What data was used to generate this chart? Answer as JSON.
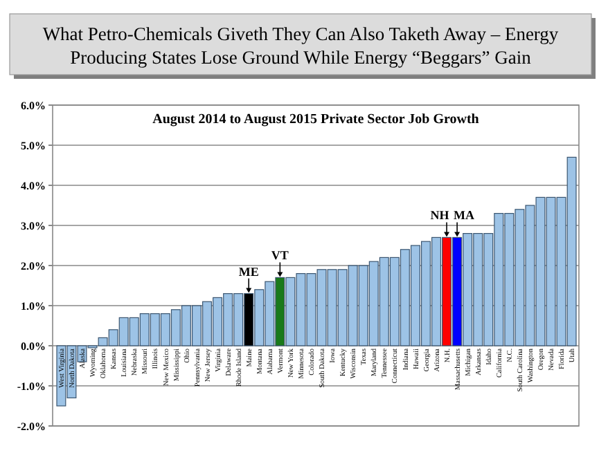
{
  "chart_data": {
    "type": "bar",
    "title": "What Petro-Chemicals Giveth They Can Also Taketh Away – Energy Producing States Lose Ground While Energy “Beggars” Gain",
    "subtitle": "August 2014 to August 2015 Private Sector Job Growth",
    "categories": [
      "West Virginia",
      "North Dakota",
      "Alaska",
      "Wyoming",
      "Oklahoma",
      "Kansas",
      "Louisiana",
      "Nebraska",
      "Missouri",
      "Illinois",
      "New Mexico",
      "Mississippi",
      "Ohio",
      "Pennsylvania",
      "New Jersey",
      "Virginia",
      "Delaware",
      "Rhode Island",
      "Maine",
      "Montana",
      "Alabama",
      "Vermont",
      "New York",
      "Minnesota",
      "Colorado",
      "South Dakota",
      "Iowa",
      "Kentucky",
      "Wisconsin",
      "Texas",
      "Maryland",
      "Tennessee",
      "Connecticut",
      "Indiana",
      "Hawaii",
      "Georgia",
      "Arizona",
      "N.H.",
      "Massachusetts",
      "Michigan",
      "Arkansas",
      "Idaho",
      "California",
      "N.C.",
      "South Carolina",
      "Washington",
      "Oregon",
      "Nevada",
      "Florida",
      "Utah"
    ],
    "values": [
      -1.5,
      -1.3,
      -0.4,
      -0.05,
      0.2,
      0.4,
      0.7,
      0.7,
      0.8,
      0.8,
      0.8,
      0.9,
      1.0,
      1.0,
      1.1,
      1.2,
      1.3,
      1.3,
      1.3,
      1.4,
      1.6,
      1.7,
      1.7,
      1.8,
      1.8,
      1.9,
      1.9,
      1.9,
      2.0,
      2.0,
      2.1,
      2.2,
      2.2,
      2.4,
      2.5,
      2.6,
      2.7,
      2.7,
      2.7,
      2.8,
      2.8,
      2.8,
      3.3,
      3.3,
      3.4,
      3.5,
      3.7,
      3.7,
      3.7,
      4.7
    ],
    "colors": [
      "#9dc3e6",
      "#9dc3e6",
      "#9dc3e6",
      "#9dc3e6",
      "#9dc3e6",
      "#9dc3e6",
      "#9dc3e6",
      "#9dc3e6",
      "#9dc3e6",
      "#9dc3e6",
      "#9dc3e6",
      "#9dc3e6",
      "#9dc3e6",
      "#9dc3e6",
      "#9dc3e6",
      "#9dc3e6",
      "#9dc3e6",
      "#9dc3e6",
      "#000000",
      "#9dc3e6",
      "#9dc3e6",
      "#1a7a1a",
      "#9dc3e6",
      "#9dc3e6",
      "#9dc3e6",
      "#9dc3e6",
      "#9dc3e6",
      "#9dc3e6",
      "#9dc3e6",
      "#9dc3e6",
      "#9dc3e6",
      "#9dc3e6",
      "#9dc3e6",
      "#9dc3e6",
      "#9dc3e6",
      "#9dc3e6",
      "#9dc3e6",
      "#ff0000",
      "#0000ff",
      "#9dc3e6",
      "#9dc3e6",
      "#9dc3e6",
      "#9dc3e6",
      "#9dc3e6",
      "#9dc3e6",
      "#9dc3e6",
      "#9dc3e6",
      "#9dc3e6",
      "#9dc3e6",
      "#9dc3e6"
    ],
    "ylim": [
      -2,
      6
    ],
    "yticks": [
      {
        "value": -2,
        "label": "-2.0%"
      },
      {
        "value": -1,
        "label": "-1.0%"
      },
      {
        "value": 0,
        "label": "0.0%"
      },
      {
        "value": 1,
        "label": "1.0%"
      },
      {
        "value": 2,
        "label": "2.0%"
      },
      {
        "value": 3,
        "label": "3.0%"
      },
      {
        "value": 4,
        "label": "4.0%"
      },
      {
        "value": 5,
        "label": "5.0%"
      },
      {
        "value": 6,
        "label": "6.0%"
      }
    ],
    "grid": "y",
    "annotations": [
      {
        "text": "ME",
        "x": "Maine",
        "y": 1.3
      },
      {
        "text": "VT",
        "x": "Vermont",
        "y": 1.7
      },
      {
        "text": "NH",
        "x": "N.H.",
        "y": 2.7
      },
      {
        "text": "MA",
        "x": "Massachusetts",
        "y": 2.7
      }
    ]
  }
}
